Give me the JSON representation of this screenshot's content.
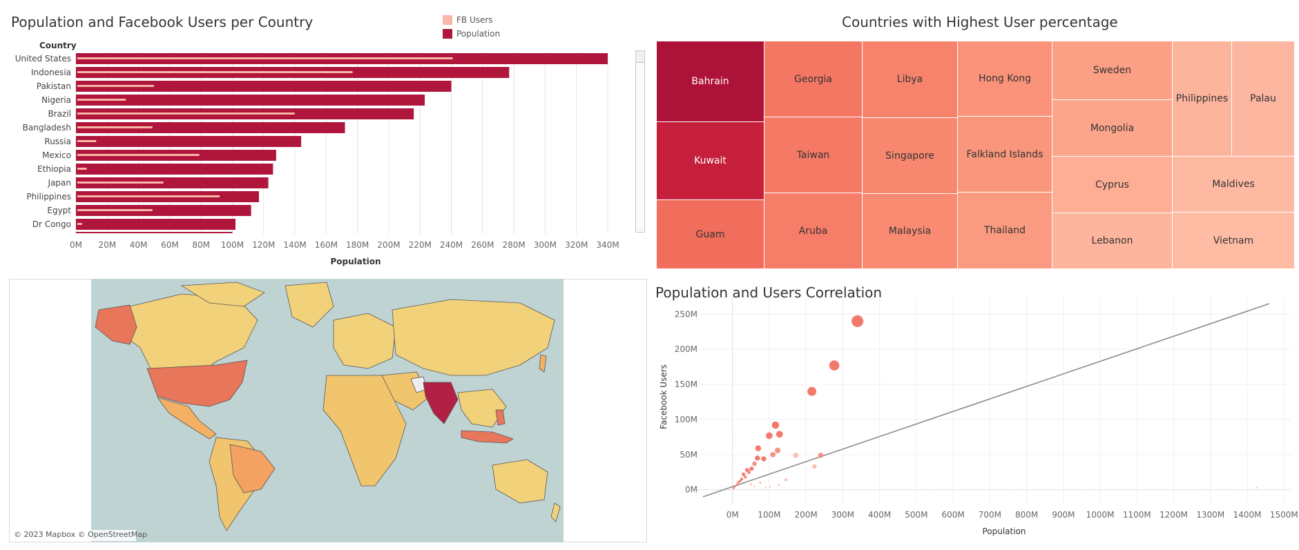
{
  "bar_panel": {
    "title": "Population and Facebook Users per Country",
    "legend": [
      {
        "label": "FB Users",
        "color": "#f9b8a8"
      },
      {
        "label": "Population",
        "color": "#b0163c"
      }
    ]
  },
  "treemap_panel": {
    "title": "Countries with Highest User percentage"
  },
  "scatter_panel": {
    "title": "Population and Users Correlation"
  },
  "map_panel": {
    "attribution": "© 2023 Mapbox © OpenStreetMap"
  },
  "chart_data": [
    {
      "type": "bar",
      "title": "Population and Facebook Users per Country",
      "ylabel": "Country",
      "xlabel": "Population",
      "xlim": [
        0,
        340000000
      ],
      "xticks": [
        "0M",
        "20M",
        "40M",
        "60M",
        "80M",
        "100M",
        "120M",
        "140M",
        "160M",
        "180M",
        "200M",
        "220M",
        "240M",
        "260M",
        "280M",
        "300M",
        "320M",
        "340M"
      ],
      "categories": [
        "United States",
        "Indonesia",
        "Pakistan",
        "Nigeria",
        "Brazil",
        "Bangladesh",
        "Russia",
        "Mexico",
        "Ethiopia",
        "Japan",
        "Philippines",
        "Egypt",
        "Dr Congo"
      ],
      "series": [
        {
          "name": "Population",
          "color": "#b0163c",
          "values": [
            340,
            277,
            240,
            223,
            216,
            172,
            144,
            128,
            126,
            123,
            117,
            112,
            102
          ]
        },
        {
          "name": "FB Users",
          "color": "#f9b8a8",
          "values": [
            240,
            176,
            49,
            31,
            139,
            48,
            12,
            78,
            6,
            55,
            91,
            48,
            3
          ]
        }
      ],
      "unit": "M"
    },
    {
      "type": "treemap",
      "title": "Countries with Highest User percentage",
      "items": [
        "Bahrain",
        "Kuwait",
        "Guam",
        "Georgia",
        "Taiwan",
        "Aruba",
        "Libya",
        "Singapore",
        "Malaysia",
        "Hong Kong",
        "Falkland Islands",
        "Thailand",
        "Sweden",
        "Mongolia",
        "Cyprus",
        "Lebanon",
        "Philippines",
        "Palau",
        "Maldives",
        "Vietnam"
      ]
    },
    {
      "type": "scatter",
      "title": "Population and Users Correlation",
      "xlabel": "Population",
      "ylabel": "Facebook Users",
      "xlim": [
        -80,
        1520
      ],
      "ylim": [
        -20,
        265
      ],
      "xticks": [
        "0M",
        "100M",
        "200M",
        "300M",
        "400M",
        "500M",
        "600M",
        "700M",
        "800M",
        "900M",
        "1000M",
        "1100M",
        "1200M",
        "1300M",
        "1400M",
        "1500M"
      ],
      "yticks": [
        "0M",
        "50M",
        "100M",
        "150M",
        "200M",
        "250M"
      ],
      "trend_line": [
        [
          -80,
          -10
        ],
        [
          1460,
          265
        ]
      ],
      "points": [
        {
          "x": 340,
          "y": 240,
          "color": "#f26b5b"
        },
        {
          "x": 277,
          "y": 177,
          "color": "#f26b5b"
        },
        {
          "x": 216,
          "y": 140,
          "color": "#f26b5b"
        },
        {
          "x": 117,
          "y": 92,
          "color": "#f26b5b"
        },
        {
          "x": 128,
          "y": 79,
          "color": "#f26b5b"
        },
        {
          "x": 100,
          "y": 77,
          "color": "#f26b5b"
        },
        {
          "x": 70,
          "y": 59,
          "color": "#f26b5b"
        },
        {
          "x": 123,
          "y": 56,
          "color": "#f4877a"
        },
        {
          "x": 110,
          "y": 50,
          "color": "#f4877a"
        },
        {
          "x": 172,
          "y": 49,
          "color": "#f9b8a8"
        },
        {
          "x": 240,
          "y": 49,
          "color": "#f4877a"
        },
        {
          "x": 85,
          "y": 44,
          "color": "#f26b5b"
        },
        {
          "x": 68,
          "y": 45,
          "color": "#f26b5b"
        },
        {
          "x": 60,
          "y": 37,
          "color": "#f4877a"
        },
        {
          "x": 223,
          "y": 33,
          "color": "#f9b8a8"
        },
        {
          "x": 52,
          "y": 30,
          "color": "#f26b5b"
        },
        {
          "x": 40,
          "y": 28,
          "color": "#f26b5b"
        },
        {
          "x": 45,
          "y": 25,
          "color": "#f4877a"
        },
        {
          "x": 30,
          "y": 22,
          "color": "#f26b5b"
        },
        {
          "x": 35,
          "y": 18,
          "color": "#f4877a"
        },
        {
          "x": 25,
          "y": 15,
          "color": "#f26b5b"
        },
        {
          "x": 20,
          "y": 12,
          "color": "#f26b5b"
        },
        {
          "x": 15,
          "y": 10,
          "color": "#f4877a"
        },
        {
          "x": 12,
          "y": 7,
          "color": "#f26b5b"
        },
        {
          "x": 8,
          "y": 5,
          "color": "#f26b5b"
        },
        {
          "x": 5,
          "y": 3,
          "color": "#f4877a"
        },
        {
          "x": 3,
          "y": 2,
          "color": "#f26b5b"
        },
        {
          "x": 50,
          "y": 8,
          "color": "#f9b8a8"
        },
        {
          "x": 60,
          "y": 5,
          "color": "#f9b8a8"
        },
        {
          "x": 75,
          "y": 10,
          "color": "#f9b8a8"
        },
        {
          "x": 145,
          "y": 14,
          "color": "#f9b8a8"
        },
        {
          "x": 126,
          "y": 7,
          "color": "#f9b8a8"
        },
        {
          "x": 102,
          "y": 4,
          "color": "#f9b8a8"
        },
        {
          "x": 90,
          "y": 3,
          "color": "#f9b8a8"
        },
        {
          "x": 1425,
          "y": 3,
          "color": "#f9b8a8"
        }
      ]
    }
  ]
}
